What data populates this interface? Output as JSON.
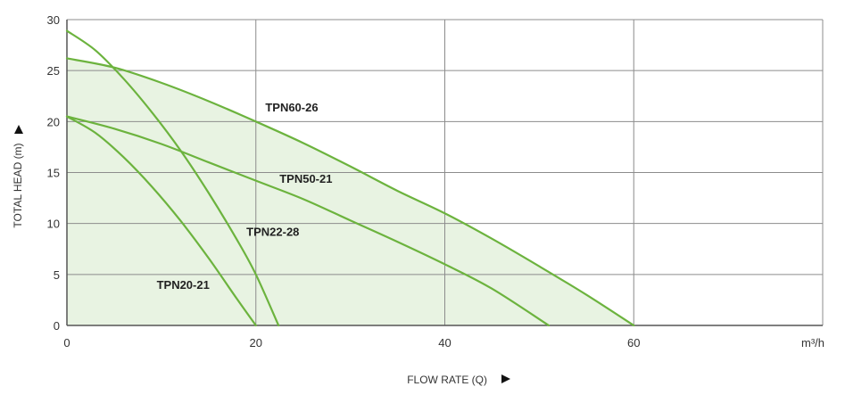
{
  "chart_data": {
    "type": "line",
    "xlabel": "FLOW RATE (Q)",
    "ylabel": "TOTAL HEAD (m)",
    "x_unit": "m³/h",
    "xlim": [
      0,
      80
    ],
    "ylim": [
      0,
      30
    ],
    "x_ticks": [
      0,
      20,
      40,
      60
    ],
    "y_ticks": [
      0,
      5,
      10,
      15,
      20,
      25,
      30
    ],
    "grid": true,
    "colors": {
      "line": "#6cb33e",
      "fill": "#e8f3e2",
      "grid": "#8c8c8c",
      "axis": "#555555",
      "arrow": "#111111"
    },
    "series": [
      {
        "name": "TPN60-26",
        "x": [
          0,
          5,
          10,
          15,
          20,
          25,
          30,
          35,
          40,
          45,
          50,
          55,
          60
        ],
        "y": [
          26.2,
          25.3,
          23.8,
          22.0,
          20.0,
          17.9,
          15.6,
          13.2,
          11.0,
          8.5,
          5.8,
          3.0,
          0
        ]
      },
      {
        "name": "TPN50-21",
        "x": [
          0,
          5,
          10,
          15,
          20,
          25,
          30,
          35,
          40,
          45,
          51
        ],
        "y": [
          20.5,
          19.3,
          17.8,
          16.0,
          14.2,
          12.4,
          10.3,
          8.2,
          6.0,
          3.6,
          0
        ]
      },
      {
        "name": "TPN22-28",
        "x": [
          0,
          3,
          6,
          9,
          12,
          15,
          18,
          20,
          22.4
        ],
        "y": [
          28.9,
          27.0,
          24.2,
          20.9,
          17.2,
          13.0,
          8.4,
          5.0,
          0
        ]
      },
      {
        "name": "TPN20-21",
        "x": [
          0,
          3,
          6,
          9,
          12,
          15,
          18,
          20
        ],
        "y": [
          20.5,
          18.9,
          16.5,
          13.6,
          10.3,
          6.6,
          2.6,
          0
        ]
      }
    ],
    "label_positions": [
      {
        "series": "TPN60-26",
        "x": 21,
        "y": 21
      },
      {
        "series": "TPN50-21",
        "x": 22.5,
        "y": 14
      },
      {
        "series": "TPN22-28",
        "x": 19,
        "y": 8.8
      },
      {
        "series": "TPN20-21",
        "x": 9.5,
        "y": 3.6
      }
    ]
  }
}
